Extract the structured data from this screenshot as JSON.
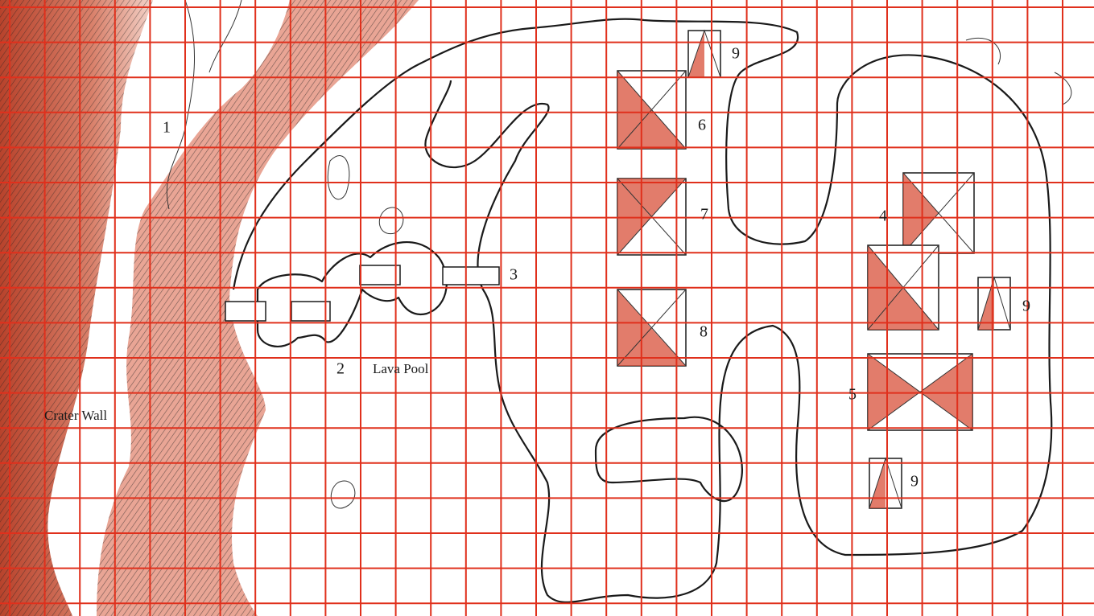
{
  "labels": [
    "1",
    "2",
    "3",
    "4",
    "5",
    "6",
    "7",
    "8",
    "9",
    "9",
    "9",
    "Lava Pool",
    "Crater Wall"
  ]
}
